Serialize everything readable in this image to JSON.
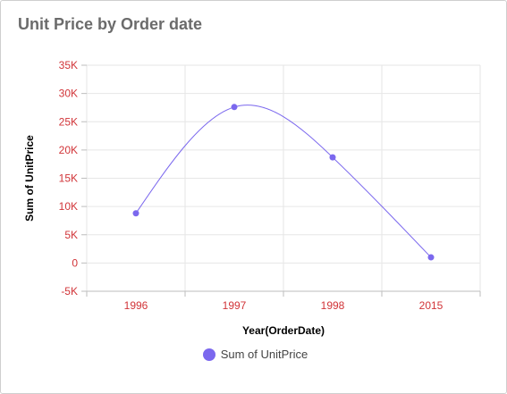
{
  "widget": {
    "title": "Unit Price by Order date"
  },
  "colors": {
    "series": "#7b68ee",
    "tick_label": "#d13438",
    "grid": "#e6e6e6",
    "axis_title": "#000000"
  },
  "chart_data": {
    "type": "line",
    "title": "Unit Price by Order date",
    "xlabel": "Year(OrderDate)",
    "ylabel": "Sum of UnitPrice",
    "categories": [
      "1996",
      "1997",
      "1998",
      "2015"
    ],
    "series": [
      {
        "name": "Sum of UnitPrice",
        "values": [
          8800,
          27600,
          18700,
          1000
        ],
        "color": "#7b68ee"
      }
    ],
    "ylim": [
      -5000,
      35000
    ],
    "y_ticks": [
      -5000,
      0,
      5000,
      10000,
      15000,
      20000,
      25000,
      30000,
      35000
    ],
    "y_tick_labels": [
      "-5K",
      "0",
      "5K",
      "10K",
      "15K",
      "20K",
      "25K",
      "30K",
      "35K"
    ],
    "grid": true,
    "smooth": true,
    "markers": true,
    "legend": "bottom-center"
  }
}
